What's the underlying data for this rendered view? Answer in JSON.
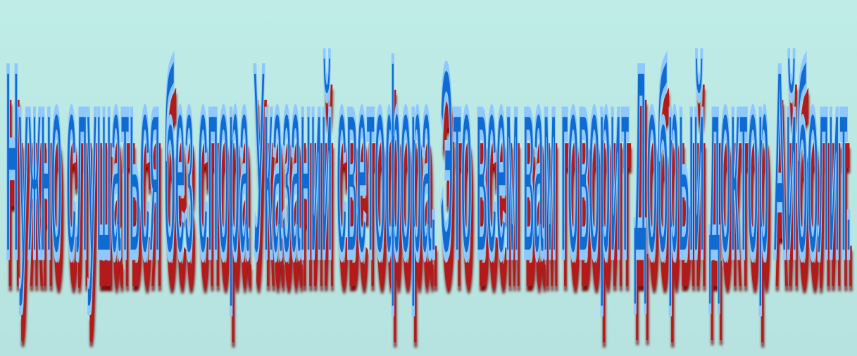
{
  "slide": {
    "wordart_text": "Нужно слушаться без спора Указаний светофора. Это всем вам говорит Добрый доктор Айболит."
  },
  "colors": {
    "background": "#bfece6",
    "text_fill": "#0f6ad1",
    "text_outline": "#8ec8ff",
    "text_shadow": "#b31b1b"
  }
}
